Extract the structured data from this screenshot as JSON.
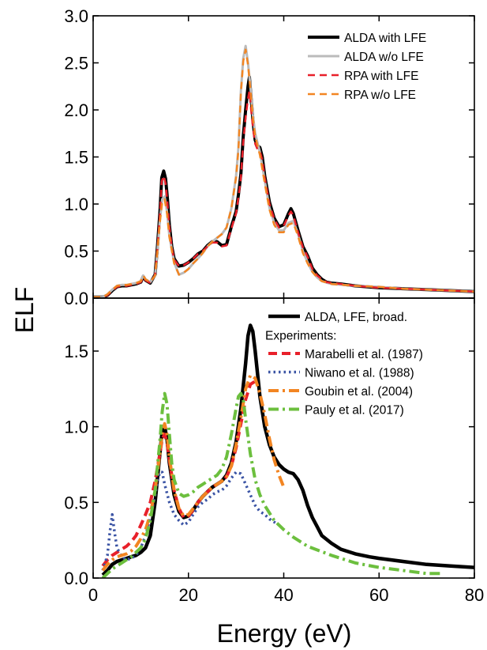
{
  "figure": {
    "ylabel": "ELF",
    "xlabel": "Energy (eV)"
  },
  "chart_data": [
    {
      "type": "line",
      "xlim": [
        0,
        80
      ],
      "ylim": [
        0,
        3.0
      ],
      "yticks": [
        0.0,
        0.5,
        1.0,
        1.5,
        2.0,
        2.5,
        3.0
      ],
      "ytick_labels": [
        "0.0",
        "0.5",
        "1.0",
        "1.5",
        "2.0",
        "2.5",
        "3.0"
      ],
      "xticks": [
        0,
        20,
        40,
        60,
        80
      ],
      "xtick_labels": [],
      "legend_position": "top-right",
      "legend_header": "",
      "series": [
        {
          "name": "ALDA with LFE",
          "color": "#000000",
          "dash": "solid",
          "width": 4,
          "x": [
            0,
            2,
            3,
            4,
            5,
            6,
            7,
            8,
            9,
            10,
            10.5,
            11,
            12,
            13,
            13.5,
            14,
            14.4,
            14.8,
            15.2,
            15.6,
            16,
            16.5,
            17,
            18,
            19,
            20,
            21,
            22,
            23,
            24,
            25,
            26,
            27,
            28,
            29,
            30,
            30.5,
            31,
            31.5,
            32,
            32.5,
            32.8,
            33.2,
            33.6,
            34,
            34.5,
            35,
            35.5,
            36,
            37,
            38,
            39,
            40,
            41,
            41.5,
            42,
            43,
            44,
            45,
            46,
            47,
            48,
            49,
            50,
            52,
            55,
            60,
            65,
            70,
            75,
            80
          ],
          "y": [
            0.01,
            0.01,
            0.03,
            0.08,
            0.12,
            0.13,
            0.13,
            0.14,
            0.15,
            0.17,
            0.23,
            0.19,
            0.16,
            0.25,
            0.55,
            0.9,
            1.28,
            1.35,
            1.27,
            1.05,
            0.78,
            0.55,
            0.42,
            0.34,
            0.35,
            0.38,
            0.42,
            0.47,
            0.5,
            0.56,
            0.6,
            0.6,
            0.56,
            0.57,
            0.76,
            0.92,
            1.1,
            1.32,
            1.72,
            2.0,
            2.25,
            2.35,
            2.1,
            1.85,
            1.68,
            1.62,
            1.6,
            1.5,
            1.3,
            1.02,
            0.85,
            0.76,
            0.78,
            0.9,
            0.95,
            0.9,
            0.72,
            0.55,
            0.45,
            0.32,
            0.25,
            0.2,
            0.17,
            0.16,
            0.15,
            0.13,
            0.11,
            0.1,
            0.09,
            0.08,
            0.07
          ]
        },
        {
          "name": "ALDA w/o LFE",
          "color": "#bbbbbb",
          "dash": "solid",
          "width": 3,
          "x": [
            0,
            2,
            3,
            4,
            5,
            6,
            7,
            8,
            9,
            10,
            10.5,
            11,
            12,
            13,
            13.5,
            14,
            14.5,
            15,
            15.5,
            16,
            17,
            18,
            19,
            20,
            21,
            22,
            23,
            24,
            25,
            26,
            27,
            28,
            29,
            30,
            30.5,
            31,
            31.5,
            32,
            32.5,
            33,
            33.5,
            34,
            35,
            36,
            37,
            38,
            39,
            40,
            41,
            42,
            43,
            44,
            45,
            46,
            47,
            48,
            50,
            55,
            60,
            65,
            70,
            75,
            80
          ],
          "y": [
            0.01,
            0.01,
            0.04,
            0.09,
            0.13,
            0.14,
            0.14,
            0.15,
            0.16,
            0.18,
            0.24,
            0.2,
            0.17,
            0.24,
            0.5,
            0.82,
            1.05,
            1.08,
            0.92,
            0.66,
            0.38,
            0.25,
            0.27,
            0.31,
            0.37,
            0.42,
            0.48,
            0.55,
            0.6,
            0.64,
            0.68,
            0.75,
            0.95,
            1.3,
            1.6,
            2.2,
            2.55,
            2.68,
            2.5,
            2.25,
            1.95,
            1.75,
            1.55,
            1.25,
            0.96,
            0.8,
            0.72,
            0.72,
            0.8,
            0.82,
            0.68,
            0.5,
            0.38,
            0.28,
            0.22,
            0.18,
            0.15,
            0.13,
            0.12,
            0.1,
            0.09,
            0.08,
            0.07
          ]
        },
        {
          "name": "RPA with LFE",
          "color": "#e8202a",
          "dash": "9,6",
          "width": 2.5,
          "x": [
            0,
            2,
            3,
            4,
            5,
            6,
            7,
            8,
            9,
            10,
            10.5,
            11,
            12,
            13,
            13.5,
            14,
            14.4,
            14.8,
            15.2,
            15.6,
            16,
            16.5,
            17,
            18,
            19,
            20,
            21,
            22,
            23,
            24,
            25,
            26,
            27,
            28,
            29,
            30,
            30.5,
            31,
            31.5,
            32,
            32.5,
            32.8,
            33.2,
            33.6,
            34,
            34.5,
            35,
            35.5,
            36,
            37,
            38,
            39,
            40,
            41,
            41.5,
            42,
            43,
            44,
            45,
            46,
            47,
            48,
            49,
            50,
            52,
            55,
            60,
            65,
            70,
            75,
            80
          ],
          "y": [
            0.01,
            0.01,
            0.03,
            0.08,
            0.12,
            0.13,
            0.13,
            0.14,
            0.15,
            0.17,
            0.22,
            0.19,
            0.16,
            0.25,
            0.53,
            0.88,
            1.24,
            1.3,
            1.22,
            1.0,
            0.76,
            0.54,
            0.41,
            0.34,
            0.35,
            0.38,
            0.42,
            0.47,
            0.5,
            0.55,
            0.59,
            0.59,
            0.55,
            0.56,
            0.74,
            0.9,
            1.07,
            1.28,
            1.66,
            1.92,
            2.12,
            2.2,
            1.98,
            1.78,
            1.64,
            1.58,
            1.56,
            1.47,
            1.28,
            1.0,
            0.84,
            0.75,
            0.77,
            0.88,
            0.92,
            0.88,
            0.7,
            0.54,
            0.44,
            0.31,
            0.24,
            0.2,
            0.17,
            0.16,
            0.15,
            0.13,
            0.11,
            0.1,
            0.09,
            0.08,
            0.07
          ]
        },
        {
          "name": "RPA w/o LFE",
          "color": "#f28522",
          "dash": "9,6",
          "width": 2.5,
          "x": [
            0,
            2,
            3,
            4,
            5,
            6,
            7,
            8,
            9,
            10,
            10.5,
            11,
            12,
            13,
            13.5,
            14,
            14.5,
            15,
            15.5,
            16,
            17,
            18,
            19,
            20,
            21,
            22,
            23,
            24,
            25,
            26,
            27,
            28,
            29,
            30,
            30.5,
            31,
            31.5,
            32,
            32.5,
            33,
            33.5,
            34,
            35,
            36,
            37,
            38,
            39,
            40,
            41,
            42,
            43,
            44,
            45,
            46,
            47,
            48,
            50,
            55,
            60,
            65,
            70,
            75,
            80
          ],
          "y": [
            0.01,
            0.01,
            0.04,
            0.09,
            0.13,
            0.14,
            0.14,
            0.15,
            0.16,
            0.18,
            0.24,
            0.2,
            0.17,
            0.24,
            0.5,
            0.8,
            1.02,
            1.05,
            0.9,
            0.65,
            0.37,
            0.25,
            0.27,
            0.31,
            0.37,
            0.42,
            0.48,
            0.55,
            0.6,
            0.64,
            0.68,
            0.75,
            0.95,
            1.28,
            1.58,
            2.18,
            2.52,
            2.64,
            2.48,
            2.22,
            1.92,
            1.72,
            1.52,
            1.22,
            0.94,
            0.78,
            0.7,
            0.7,
            0.78,
            0.8,
            0.66,
            0.48,
            0.37,
            0.28,
            0.22,
            0.18,
            0.15,
            0.13,
            0.12,
            0.1,
            0.09,
            0.08,
            0.07
          ]
        }
      ]
    },
    {
      "type": "line",
      "xlim": [
        0,
        80
      ],
      "ylim": [
        0,
        1.85
      ],
      "yticks": [
        0.0,
        0.5,
        1.0,
        1.5
      ],
      "ytick_labels": [
        "0.0",
        "0.5",
        "1.0",
        "1.5"
      ],
      "xticks": [
        0,
        20,
        40,
        60,
        80
      ],
      "xtick_labels": [
        "0",
        "20",
        "40",
        "60",
        "80"
      ],
      "legend_position": "top-right",
      "legend_header": "Experiments:",
      "series": [
        {
          "name": "ALDA, LFE, broad.",
          "color": "#000000",
          "dash": "solid",
          "width": 4.5,
          "x": [
            2,
            3,
            4,
            5,
            6,
            7,
            8,
            9,
            10,
            11,
            12,
            13,
            14,
            14.5,
            15,
            15.5,
            16,
            17,
            18,
            19,
            20,
            21,
            22,
            23,
            24,
            25,
            26,
            27,
            28,
            29,
            30,
            31,
            32,
            32.5,
            33,
            33.5,
            34,
            35,
            36,
            37,
            38,
            39,
            40,
            41,
            42,
            43,
            44,
            45,
            46,
            47,
            48,
            50,
            52,
            55,
            58,
            60,
            65,
            70,
            75,
            80
          ],
          "y": [
            0.02,
            0.05,
            0.09,
            0.11,
            0.12,
            0.13,
            0.14,
            0.15,
            0.17,
            0.2,
            0.28,
            0.5,
            0.82,
            0.97,
            1.0,
            0.92,
            0.76,
            0.55,
            0.44,
            0.4,
            0.41,
            0.45,
            0.5,
            0.54,
            0.57,
            0.6,
            0.62,
            0.64,
            0.68,
            0.76,
            0.9,
            1.12,
            1.42,
            1.6,
            1.67,
            1.63,
            1.5,
            1.2,
            1.0,
            0.88,
            0.8,
            0.75,
            0.72,
            0.7,
            0.69,
            0.65,
            0.58,
            0.48,
            0.4,
            0.34,
            0.28,
            0.23,
            0.19,
            0.16,
            0.14,
            0.13,
            0.11,
            0.09,
            0.08,
            0.07
          ]
        },
        {
          "name": "Marabelli et al. (1987)",
          "color": "#e8202a",
          "dash": "11,6",
          "width": 4,
          "x": [
            2,
            3,
            4,
            5,
            6,
            7,
            8,
            9,
            10,
            11,
            12,
            13,
            14,
            14.5,
            15,
            15.5,
            16,
            17,
            18,
            19,
            20,
            21,
            22,
            23,
            24,
            25,
            26,
            27,
            28,
            29,
            30,
            31,
            32,
            33,
            34
          ],
          "y": [
            0.08,
            0.12,
            0.15,
            0.17,
            0.19,
            0.21,
            0.24,
            0.28,
            0.35,
            0.42,
            0.5,
            0.64,
            0.82,
            0.92,
            0.95,
            0.9,
            0.78,
            0.58,
            0.46,
            0.4,
            0.41,
            0.45,
            0.5,
            0.54,
            0.57,
            0.6,
            0.62,
            0.64,
            0.67,
            0.74,
            0.86,
            1.02,
            1.18,
            1.28,
            1.3
          ]
        },
        {
          "name": "Niwano et al. (1988)",
          "color": "#3a53a4",
          "dash": "2.5,4",
          "width": 3.5,
          "x": [
            2,
            3,
            3.5,
            4,
            4.5,
            5,
            6,
            7,
            8,
            9,
            10,
            11,
            12,
            13,
            13.5,
            14,
            14.5,
            15,
            16,
            17,
            18,
            19,
            20,
            21,
            22,
            23,
            24,
            25,
            26,
            27,
            28,
            29,
            30,
            31,
            32,
            33,
            34,
            35,
            36,
            37,
            38,
            39
          ],
          "y": [
            0.05,
            0.15,
            0.3,
            0.42,
            0.3,
            0.2,
            0.14,
            0.12,
            0.13,
            0.15,
            0.2,
            0.28,
            0.4,
            0.55,
            0.64,
            0.7,
            0.7,
            0.62,
            0.5,
            0.42,
            0.38,
            0.35,
            0.37,
            0.42,
            0.47,
            0.5,
            0.52,
            0.55,
            0.57,
            0.58,
            0.61,
            0.66,
            0.7,
            0.69,
            0.62,
            0.55,
            0.48,
            0.44,
            0.42,
            0.39,
            0.37,
            0.35
          ]
        },
        {
          "name": "Goubin et al. (2004)",
          "color": "#f28522",
          "dash": "13,5,3,5",
          "width": 4,
          "x": [
            2,
            3,
            4,
            5,
            6,
            7,
            8,
            9,
            10,
            11,
            12,
            13,
            14,
            14.5,
            15,
            15.5,
            16,
            17,
            18,
            19,
            20,
            21,
            22,
            23,
            24,
            25,
            26,
            27,
            28,
            29,
            30,
            31,
            32,
            33,
            34,
            35,
            36,
            37,
            38,
            39,
            40
          ],
          "y": [
            0.05,
            0.09,
            0.12,
            0.14,
            0.15,
            0.16,
            0.18,
            0.21,
            0.26,
            0.32,
            0.42,
            0.58,
            0.82,
            0.96,
            1.02,
            0.95,
            0.8,
            0.58,
            0.46,
            0.41,
            0.42,
            0.46,
            0.5,
            0.54,
            0.57,
            0.6,
            0.62,
            0.64,
            0.67,
            0.74,
            0.88,
            1.06,
            1.25,
            1.34,
            1.32,
            1.22,
            1.08,
            0.92,
            0.78,
            0.68,
            0.6
          ]
        },
        {
          "name": "Pauly et al. (2017)",
          "color": "#6cbf3e",
          "dash": "13,5,3,5",
          "width": 4,
          "x": [
            2,
            3,
            4,
            5,
            6,
            7,
            8,
            9,
            10,
            11,
            12,
            13,
            14,
            14.5,
            15,
            15.5,
            16,
            16.5,
            17,
            18,
            19,
            20,
            21,
            22,
            23,
            24,
            25,
            26,
            27,
            28,
            29,
            30,
            30.5,
            31,
            31.5,
            32,
            33,
            34,
            35,
            36,
            38,
            40,
            42,
            45,
            50,
            55,
            60,
            65,
            70,
            73
          ],
          "y": [
            0.0,
            0.03,
            0.06,
            0.08,
            0.1,
            0.12,
            0.14,
            0.17,
            0.2,
            0.26,
            0.38,
            0.58,
            0.9,
            1.1,
            1.22,
            1.15,
            0.95,
            0.76,
            0.65,
            0.56,
            0.54,
            0.55,
            0.57,
            0.6,
            0.62,
            0.64,
            0.66,
            0.68,
            0.72,
            0.8,
            0.95,
            1.12,
            1.2,
            1.22,
            1.18,
            1.05,
            0.82,
            0.65,
            0.55,
            0.48,
            0.38,
            0.32,
            0.27,
            0.21,
            0.15,
            0.1,
            0.07,
            0.05,
            0.03,
            0.03
          ]
        }
      ]
    }
  ]
}
